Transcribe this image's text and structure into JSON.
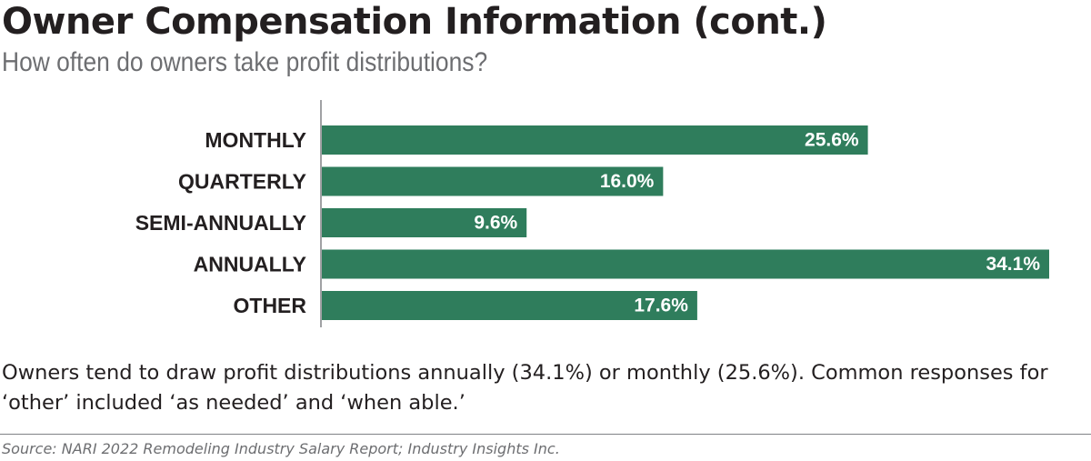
{
  "header": {
    "title": "Owner Compensation Information (cont.)",
    "subtitle": "How often do owners take profit distributions?"
  },
  "colors": {
    "bar": "#2f7d5c",
    "axis": "#808285",
    "title": "#231f20",
    "subtitle": "#6d6e71"
  },
  "chart_data": {
    "type": "bar",
    "orientation": "horizontal",
    "title": "How often do owners take profit distributions?",
    "xlabel": "",
    "ylabel": "",
    "categories": [
      "MONTHLY",
      "QUARTERLY",
      "SEMI-ANNUALLY",
      "ANNUALLY",
      "OTHER"
    ],
    "values": [
      25.6,
      16.0,
      9.6,
      34.1,
      17.6
    ],
    "value_labels": [
      "25.6%",
      "16.0%",
      "9.6%",
      "34.1%",
      "17.6%"
    ],
    "xlim": [
      0,
      34.1
    ],
    "grid": false,
    "legend": "none"
  },
  "footer": {
    "note": "Owners tend to draw profit distributions annually (34.1%) or monthly (25.6%). Common responses for ‘other’ included ‘as needed’ and ‘when able.’",
    "source": "Source: NARI 2022 Remodeling Industry Salary Report; Industry Insights Inc."
  }
}
